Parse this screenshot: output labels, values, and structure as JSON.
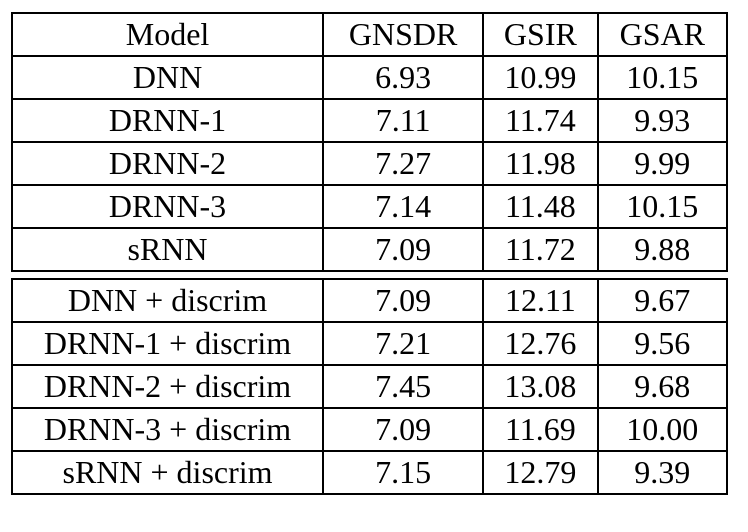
{
  "page": {
    "background": "#ffffff",
    "border_color": "#000000",
    "text_color": "#000000"
  },
  "chart_data": {
    "type": "table",
    "columns": [
      "Model",
      "GNSDR",
      "GSIR",
      "GSAR"
    ],
    "groups": [
      {
        "rows": [
          [
            "DNN",
            "6.93",
            "10.99",
            "10.15"
          ],
          [
            "DRNN-1",
            "7.11",
            "11.74",
            "9.93"
          ],
          [
            "DRNN-2",
            "7.27",
            "11.98",
            "9.99"
          ],
          [
            "DRNN-3",
            "7.14",
            "11.48",
            "10.15"
          ],
          [
            "sRNN",
            "7.09",
            "11.72",
            "9.88"
          ]
        ]
      },
      {
        "rows": [
          [
            "DNN + discrim",
            "7.09",
            "12.11",
            "9.67"
          ],
          [
            "DRNN-1 + discrim",
            "7.21",
            "12.76",
            "9.56"
          ],
          [
            "DRNN-2 + discrim",
            "7.45",
            "13.08",
            "9.68"
          ],
          [
            "DRNN-3 + discrim",
            "7.09",
            "11.69",
            "10.00"
          ],
          [
            "sRNN + discrim",
            "7.15",
            "12.79",
            "9.39"
          ]
        ]
      }
    ]
  }
}
